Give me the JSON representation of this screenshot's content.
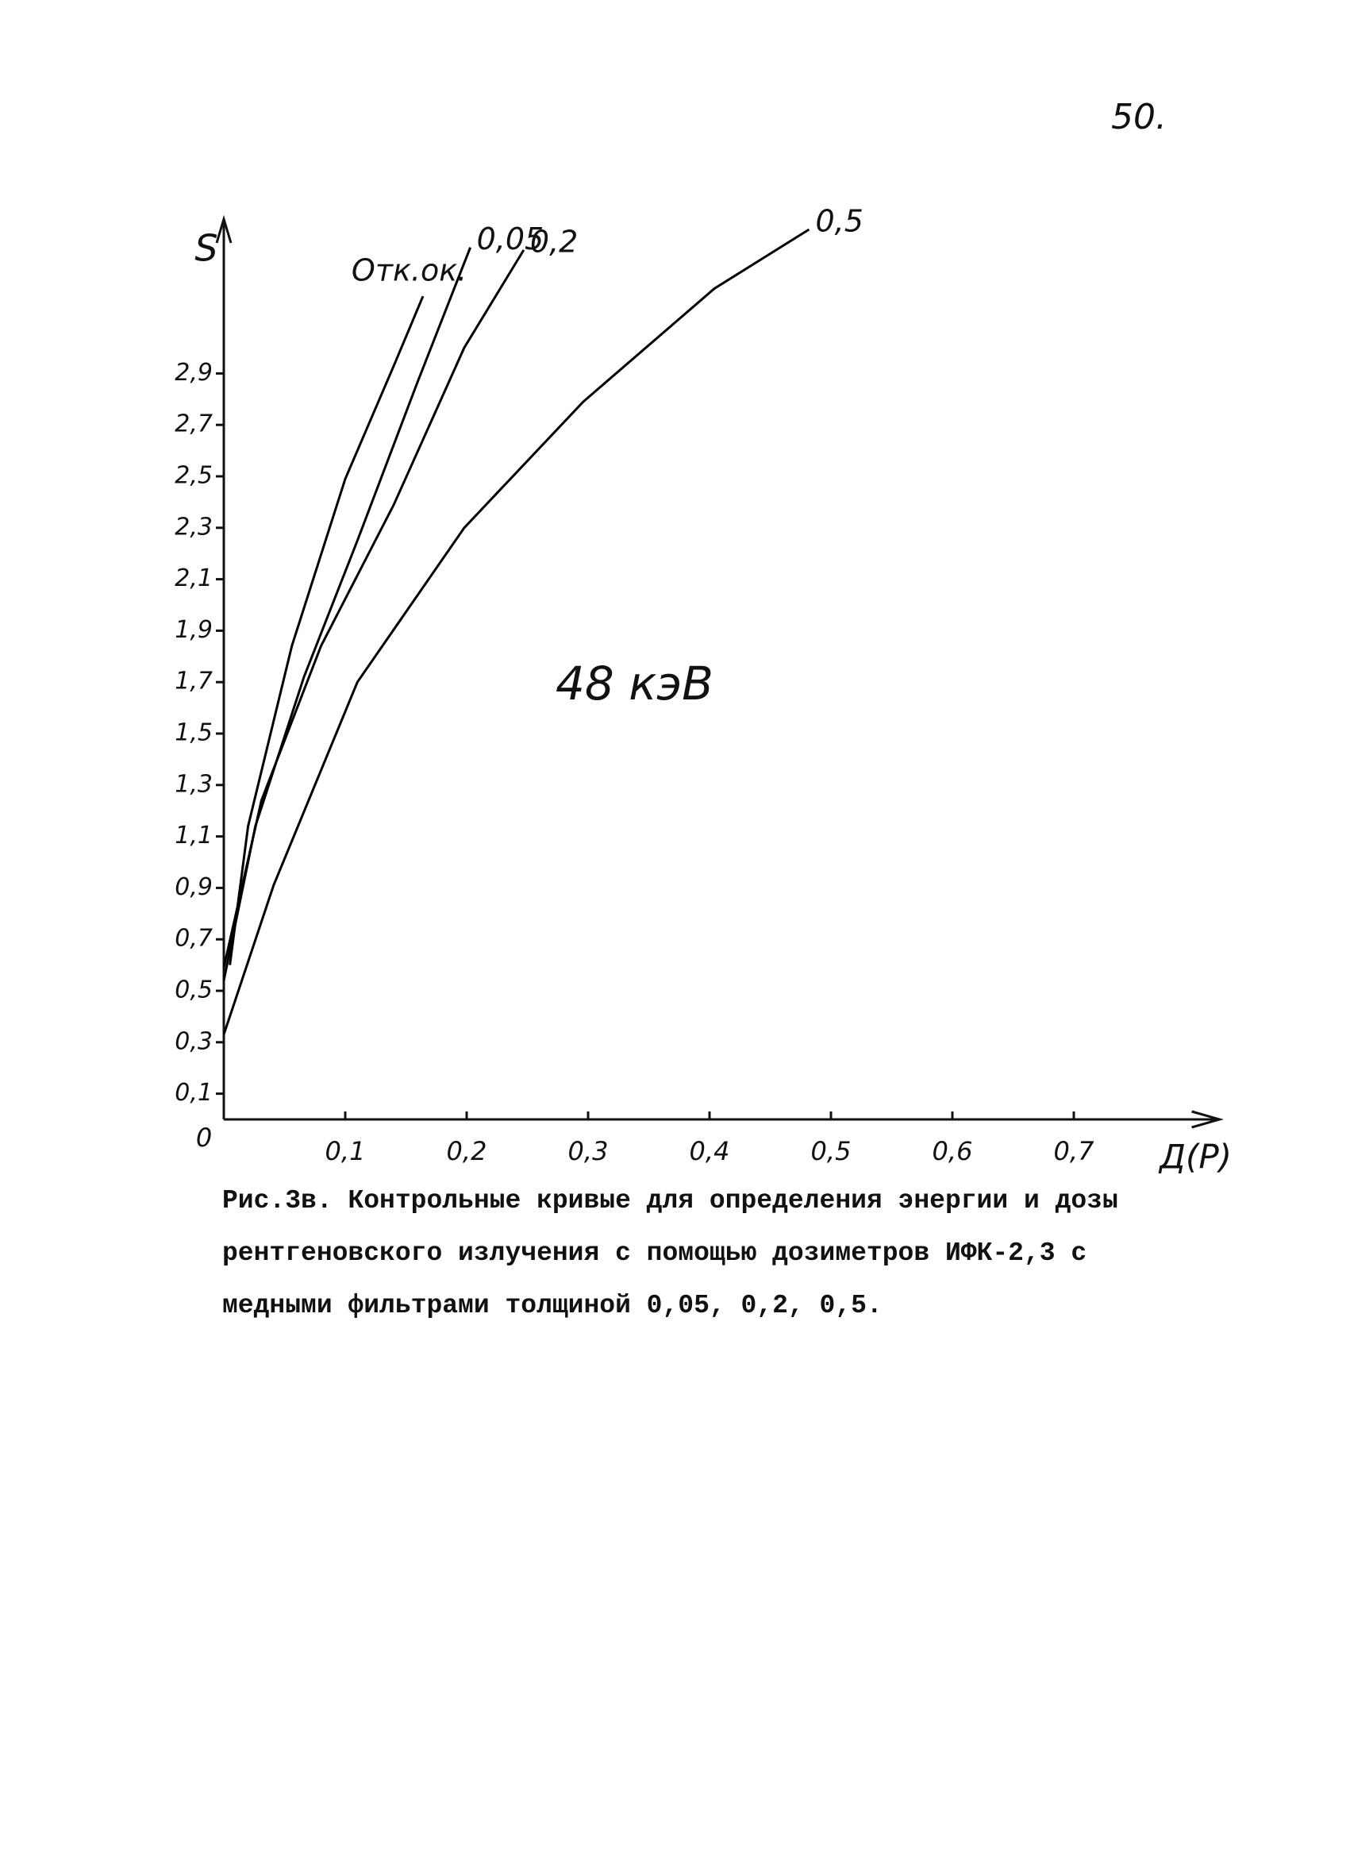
{
  "page_number": "50.",
  "chart_data": {
    "type": "line",
    "y_label": "S",
    "x_label": "Д(Р)",
    "annotation": "48 кэВ",
    "xlim": [
      0,
      0.82
    ],
    "ylim": [
      0,
      3.5
    ],
    "xticks": [
      0,
      {
        "value": 0.1,
        "label": "0,1"
      },
      {
        "value": 0.2,
        "label": "0,2"
      },
      {
        "value": 0.3,
        "label": "0,3"
      },
      {
        "value": 0.4,
        "label": "0,4"
      },
      {
        "value": 0.5,
        "label": "0,5"
      },
      {
        "value": 0.6,
        "label": "0,6"
      },
      {
        "value": 0.7,
        "label": "0,7"
      }
    ],
    "yticks": [
      {
        "value": 0.1,
        "label": "0,1"
      },
      {
        "value": 0.3,
        "label": "0,3"
      },
      {
        "value": 0.5,
        "label": "0,5"
      },
      {
        "value": 0.7,
        "label": "0,7"
      },
      {
        "value": 0.9,
        "label": "0,9"
      },
      {
        "value": 1.1,
        "label": "1,1"
      },
      {
        "value": 1.3,
        "label": "1,3"
      },
      {
        "value": 1.5,
        "label": "1,5"
      },
      {
        "value": 1.7,
        "label": "1,7"
      },
      {
        "value": 1.9,
        "label": "1,9"
      },
      {
        "value": 2.1,
        "label": "2,1"
      },
      {
        "value": 2.3,
        "label": "2,3"
      },
      {
        "value": 2.5,
        "label": "2,5"
      },
      {
        "value": 2.7,
        "label": "2,7"
      },
      {
        "value": 2.9,
        "label": "2,9"
      }
    ],
    "grid": false,
    "series": [
      {
        "name": "Отк.ок.",
        "color": "#000000",
        "x": [
          0.005,
          0.02,
          0.056,
          0.1,
          0.14,
          0.164
        ],
        "values": [
          0.6,
          1.14,
          1.84,
          2.49,
          2.93,
          3.2
        ]
      },
      {
        "name": "0,05",
        "color": "#000000",
        "x": [
          0,
          0.026,
          0.066,
          0.11,
          0.159,
          0.203
        ],
        "values": [
          0.54,
          1.14,
          1.72,
          2.25,
          2.86,
          3.39
        ]
      },
      {
        "name": "0,2",
        "color": "#000000",
        "x": [
          0,
          0.031,
          0.08,
          0.14,
          0.198,
          0.247
        ],
        "values": [
          0.59,
          1.24,
          1.84,
          2.39,
          3.0,
          3.38
        ]
      },
      {
        "name": "0,5",
        "color": "#000000",
        "x": [
          0,
          0.041,
          0.11,
          0.198,
          0.296,
          0.404,
          0.482
        ],
        "values": [
          0.33,
          0.91,
          1.7,
          2.3,
          2.79,
          3.23,
          3.46
        ]
      }
    ]
  },
  "caption": {
    "lines": [
      "Рис.3в. Контрольные кривые для определения энергии и дозы",
      "рентгеновского излучения с помощью дозиметров ИФК-2,3 с",
      "медными фильтрами толщиной 0,05, 0,2, 0,5."
    ]
  }
}
